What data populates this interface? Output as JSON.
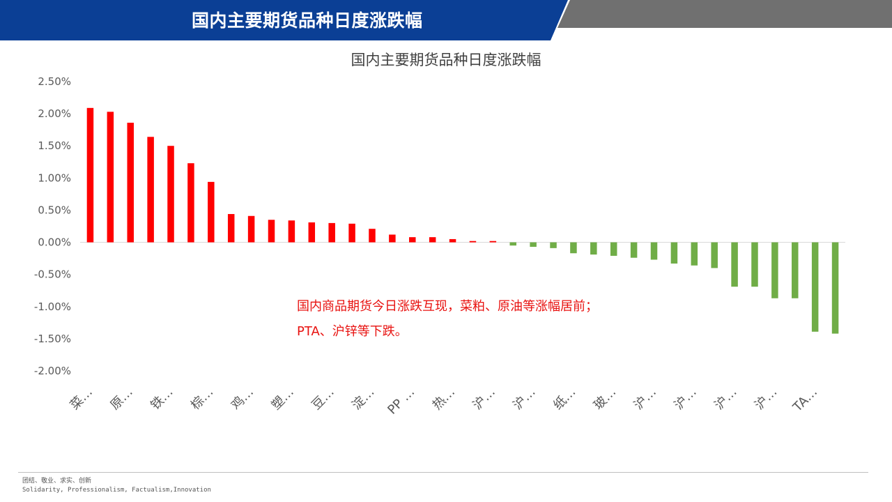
{
  "header": {
    "title": "国内主要期货品种日度涨跌幅",
    "colors": {
      "blue": "#0b3f95",
      "gray": "#707070"
    }
  },
  "chart_data": {
    "type": "bar",
    "title": "国内主要期货品种日度涨跌幅",
    "y_ticks": [
      "2.50%",
      "2.00%",
      "1.50%",
      "1.00%",
      "0.50%",
      "0.00%",
      "-0.50%",
      "-1.00%",
      "-1.50%",
      "-2.00%"
    ],
    "ylim": [
      -0.02,
      0.025
    ],
    "categories": [
      "菜…",
      "",
      "原…",
      "",
      "铁…",
      "",
      "棕…",
      "",
      "鸡…",
      "",
      "塑…",
      "",
      "豆…",
      "",
      "淀…",
      "",
      "PP …",
      "",
      "热…",
      "",
      "沪…",
      "",
      "沪…",
      "",
      "纸…",
      "",
      "玻…",
      "",
      "沪…",
      "",
      "沪…",
      "",
      "沪…",
      "",
      "沪…",
      "",
      "TA…",
      ""
    ],
    "values": [
      0.0209,
      0.0203,
      0.0186,
      0.0164,
      0.015,
      0.0123,
      0.0094,
      0.0044,
      0.0041,
      0.0035,
      0.0034,
      0.0031,
      0.003,
      0.0029,
      0.0021,
      0.0012,
      0.0008,
      0.0008,
      0.0005,
      0.0002,
      0.0002,
      -0.0005,
      -0.0007,
      -0.0009,
      -0.0017,
      -0.0019,
      -0.0021,
      -0.0024,
      -0.0027,
      -0.0033,
      -0.0036,
      -0.004,
      -0.0069,
      -0.0069,
      -0.0087,
      -0.0087,
      -0.0139,
      -0.0142
    ],
    "colors": {
      "up": "#ff0000",
      "down": "#70ad47"
    },
    "grid": false
  },
  "annotation": {
    "line1": "国内商品期货今日涨跌互现，菜粕、原油等涨幅居前；",
    "line2": "PTA、沪锌等下跌。"
  },
  "footer": {
    "cn": "团结、敬业、求实、创新",
    "en": "Solidarity, Professionalism, Factualism,Innovation"
  }
}
